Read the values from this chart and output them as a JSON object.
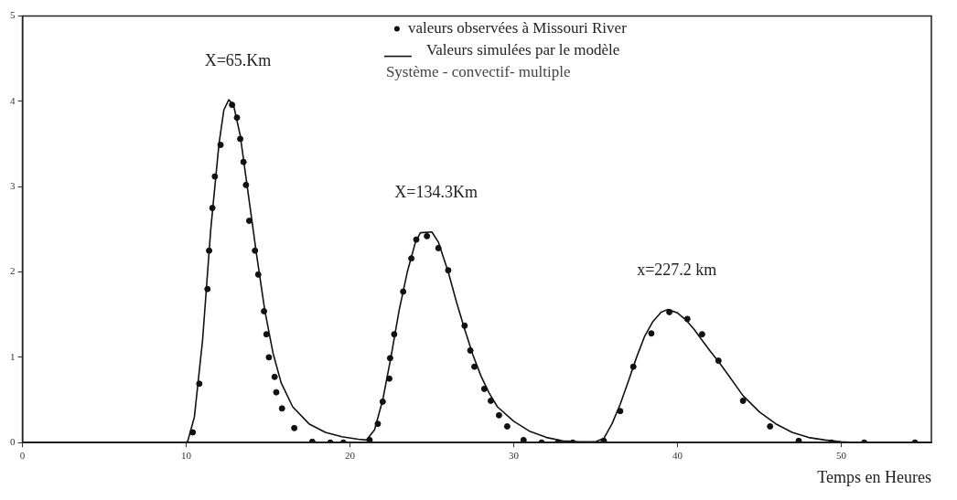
{
  "chart_data": {
    "type": "line",
    "subtitle": "Système - convectif- multiple",
    "xlabel": "Temps en Heures",
    "xlim": [
      0,
      55.5
    ],
    "xticks": [
      0,
      10,
      20,
      30,
      40,
      50
    ],
    "ylim": [
      0,
      5
    ],
    "yticks": [
      0,
      1,
      2,
      3,
      4,
      5
    ],
    "grid": false,
    "legend": "top",
    "annotations": [
      {
        "text": "X=65.Km",
        "x": 12.6,
        "y": 4.02
      },
      {
        "text": "X=134.3Km",
        "x": 24.7,
        "y": 2.47
      },
      {
        "text": "x=227.2 km",
        "x": 39.4,
        "y": 1.56
      }
    ],
    "series": [
      {
        "name": "valeurs observées à Missouri River",
        "type": "scatter",
        "marker": "circle",
        "color": "#111111",
        "x": [
          10.4,
          10.8,
          11.3,
          11.4,
          11.6,
          11.75,
          12.1,
          12.8,
          13.1,
          13.3,
          13.5,
          13.65,
          13.85,
          14.2,
          14.4,
          14.75,
          14.9,
          15.05,
          15.4,
          15.5,
          15.85,
          16.6,
          17.7,
          18.8,
          19.6,
          21.2,
          21.7,
          22,
          22.4,
          22.45,
          22.7,
          23.25,
          23.75,
          24.05,
          24.7,
          25.4,
          26,
          27,
          27.35,
          27.6,
          28.2,
          28.6,
          29.1,
          29.6,
          30.6,
          31.7,
          32.7,
          33.6,
          35.5,
          36.5,
          37.3,
          38.4,
          39.5,
          40.6,
          41.5,
          42.5,
          44,
          45.65,
          47.4,
          49.4,
          51.4,
          54.5
        ],
        "values": [
          0.12,
          0.69,
          1.8,
          2.25,
          2.75,
          3.12,
          3.49,
          3.96,
          3.81,
          3.56,
          3.29,
          3.02,
          2.6,
          2.25,
          1.97,
          1.54,
          1.27,
          1,
          0.77,
          0.59,
          0.4,
          0.17,
          0.01,
          0,
          0,
          0.03,
          0.22,
          0.48,
          0.75,
          0.99,
          1.27,
          1.77,
          2.16,
          2.38,
          2.42,
          2.28,
          2.02,
          1.37,
          1.08,
          0.89,
          0.63,
          0.49,
          0.32,
          0.19,
          0.03,
          0,
          0,
          0,
          0.02,
          0.37,
          0.89,
          1.28,
          1.53,
          1.45,
          1.27,
          0.96,
          0.49,
          0.19,
          0.02,
          0,
          0,
          0
        ]
      },
      {
        "name": "Valeurs simulées par le modèle",
        "type": "line",
        "marker": "none",
        "line_style": "solid",
        "color": "#111111",
        "x": [
          0,
          10,
          10.1,
          10.5,
          11,
          11.5,
          12,
          12.3,
          12.6,
          12.9,
          13.3,
          13.8,
          14.3,
          14.8,
          15.3,
          15.8,
          16.5,
          17.5,
          18.5,
          19.5,
          20.5,
          21,
          21.5,
          22,
          22.5,
          23,
          23.5,
          24,
          24.3,
          25,
          25.4,
          26,
          26.5,
          27,
          27.5,
          28,
          28.5,
          29,
          30,
          31,
          32,
          33,
          34,
          35,
          35.5,
          36,
          36.5,
          37,
          37.5,
          38,
          38.5,
          39,
          39.4,
          40,
          40.5,
          41,
          41.5,
          42,
          42.5,
          43,
          44,
          45,
          46,
          47,
          48,
          49,
          50,
          51,
          55.5
        ],
        "values": [
          0,
          0,
          0.02,
          0.3,
          1.2,
          2.5,
          3.5,
          3.9,
          4.02,
          3.95,
          3.6,
          2.9,
          2.2,
          1.55,
          1.05,
          0.7,
          0.42,
          0.22,
          0.12,
          0.07,
          0.04,
          0.03,
          0.15,
          0.5,
          1,
          1.55,
          2,
          2.35,
          2.46,
          2.47,
          2.35,
          2,
          1.65,
          1.33,
          1.03,
          0.78,
          0.58,
          0.42,
          0.25,
          0.13,
          0.06,
          0.02,
          0.01,
          0.01,
          0.05,
          0.22,
          0.45,
          0.72,
          1,
          1.25,
          1.42,
          1.53,
          1.56,
          1.52,
          1.44,
          1.33,
          1.2,
          1.07,
          0.95,
          0.82,
          0.55,
          0.36,
          0.22,
          0.12,
          0.06,
          0.03,
          0.01,
          0,
          0
        ]
      }
    ]
  }
}
